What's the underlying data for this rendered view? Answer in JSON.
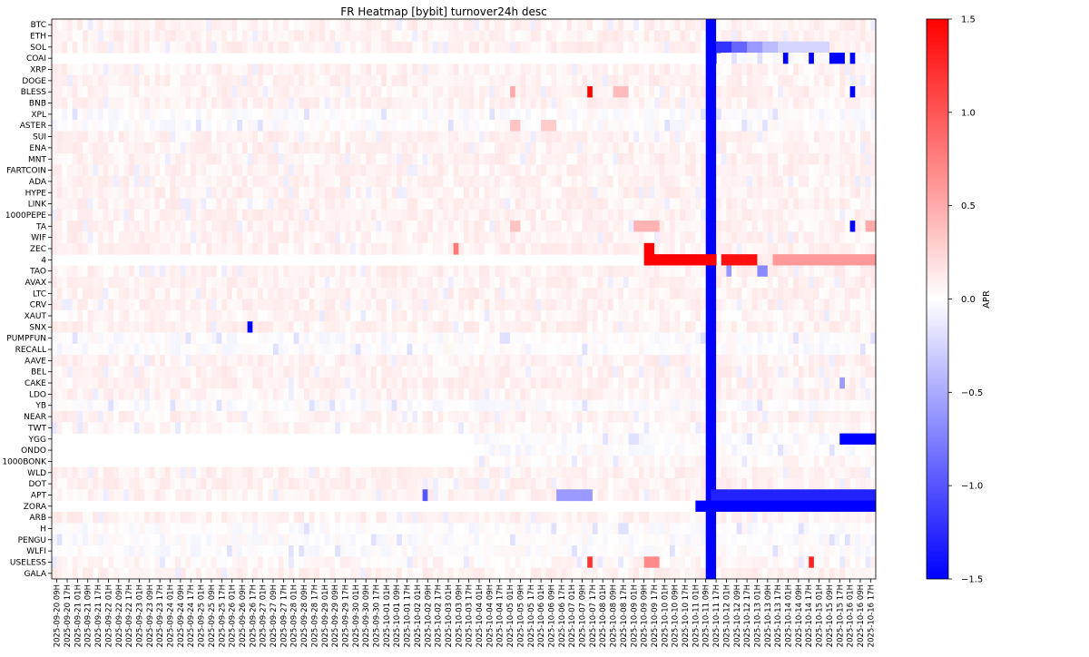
{
  "chart_data": {
    "type": "heatmap",
    "title": "FR Heatmap [bybit] turnover24h desc",
    "colorbar": {
      "label": "APR",
      "colormap": "bwr",
      "vmin": -1.5,
      "vmax": 1.5,
      "ticks": [
        "1.5",
        "1.0",
        "0.5",
        "0.0",
        "−0.5",
        "−1.0",
        "−1.5"
      ]
    },
    "rows": [
      "BTC",
      "ETH",
      "SOL",
      "COAI",
      "XRP",
      "DOGE",
      "BLESS",
      "BNB",
      "XPL",
      "ASTER",
      "SUI",
      "ENA",
      "MNT",
      "FARTCOIN",
      "ADA",
      "HYPE",
      "LINK",
      "1000PEPE",
      "TA",
      "WIF",
      "ZEC",
      "4",
      "TAO",
      "AVAX",
      "LTC",
      "CRV",
      "XAUT",
      "SNX",
      "PUMPFUN",
      "RECALL",
      "AAVE",
      "BEL",
      "CAKE",
      "LDO",
      "YB",
      "NEAR",
      "TWT",
      "YGG",
      "ONDO",
      "1000BONK",
      "WLD",
      "DOT",
      "APT",
      "ZORA",
      "ARB",
      "H",
      "PENGU",
      "WLFI",
      "USELESS",
      "GALA"
    ],
    "columns": [
      "2025-09-20 09H",
      "2025-09-20 17H",
      "2025-09-21 01H",
      "2025-09-21 09H",
      "2025-09-21 17H",
      "2025-09-22 01H",
      "2025-09-22 09H",
      "2025-09-22 17H",
      "2025-09-23 01H",
      "2025-09-23 09H",
      "2025-09-23 17H",
      "2025-09-24 01H",
      "2025-09-24 09H",
      "2025-09-24 17H",
      "2025-09-25 01H",
      "2025-09-25 09H",
      "2025-09-25 17H",
      "2025-09-26 01H",
      "2025-09-26 09H",
      "2025-09-26 17H",
      "2025-09-27 01H",
      "2025-09-27 09H",
      "2025-09-27 17H",
      "2025-09-28 01H",
      "2025-09-28 09H",
      "2025-09-28 17H",
      "2025-09-29 01H",
      "2025-09-29 09H",
      "2025-09-29 17H",
      "2025-09-30 01H",
      "2025-09-30 09H",
      "2025-09-30 17H",
      "2025-10-01 01H",
      "2025-10-01 09H",
      "2025-10-01 17H",
      "2025-10-02 01H",
      "2025-10-02 09H",
      "2025-10-02 17H",
      "2025-10-03 01H",
      "2025-10-03 09H",
      "2025-10-03 17H",
      "2025-10-04 01H",
      "2025-10-04 09H",
      "2025-10-04 17H",
      "2025-10-05 01H",
      "2025-10-05 09H",
      "2025-10-05 17H",
      "2025-10-06 01H",
      "2025-10-06 09H",
      "2025-10-06 17H",
      "2025-10-07 01H",
      "2025-10-07 09H",
      "2025-10-07 17H",
      "2025-10-08 01H",
      "2025-10-08 09H",
      "2025-10-08 17H",
      "2025-10-09 01H",
      "2025-10-09 09H",
      "2025-10-09 17H",
      "2025-10-10 01H",
      "2025-10-10 09H",
      "2025-10-10 17H",
      "2025-10-11 01H",
      "2025-10-11 09H",
      "2025-10-11 17H",
      "2025-10-12 01H",
      "2025-10-12 09H",
      "2025-10-12 17H",
      "2025-10-13 01H",
      "2025-10-13 09H",
      "2025-10-13 17H",
      "2025-10-14 01H",
      "2025-10-14 09H",
      "2025-10-14 17H",
      "2025-10-15 01H",
      "2025-10-15 09H",
      "2025-10-15 17H",
      "2025-10-16 01H",
      "2025-10-16 09H",
      "2025-10-16 17H"
    ],
    "cells_per_column": 2,
    "baseline_values": [
      0.08,
      0.08,
      0.08,
      0.0,
      0.08,
      0.08,
      0.08,
      0.08,
      0.0,
      0.0,
      0.08,
      0.08,
      0.08,
      0.08,
      0.08,
      0.08,
      0.08,
      0.08,
      0.08,
      0.08,
      0.08,
      0.08,
      0.08,
      0.08,
      0.08,
      0.08,
      0.06,
      0.08,
      0.0,
      0.0,
      0.08,
      0.08,
      0.08,
      0.08,
      0.0,
      0.08,
      0.05,
      0.0,
      0.0,
      0.05,
      0.08,
      0.08,
      0.08,
      0.08,
      0.08,
      0.0,
      0.0,
      0.0,
      0.05,
      0.08
    ],
    "row_start_cell": [
      0,
      0,
      0,
      130,
      0,
      0,
      0,
      0,
      0,
      0,
      0,
      0,
      0,
      0,
      0,
      0,
      0,
      0,
      0,
      0,
      0,
      130,
      0,
      0,
      0,
      0,
      0,
      0,
      0,
      0,
      0,
      0,
      0,
      0,
      0,
      0,
      0,
      82,
      82,
      82,
      0,
      0,
      0,
      130,
      0,
      0,
      0,
      0,
      0,
      0
    ],
    "cell_overrides": [
      {
        "row": "SOL",
        "cell_range": [
          127,
          128
        ],
        "value": -1.5
      },
      {
        "row": "SOL",
        "cell_range": [
          129,
          131
        ],
        "value": -1.2
      },
      {
        "row": "SOL",
        "cell_range": [
          132,
          134
        ],
        "value": -0.9
      },
      {
        "row": "SOL",
        "cell_range": [
          135,
          137
        ],
        "value": -0.6
      },
      {
        "row": "SOL",
        "cell_range": [
          138,
          140
        ],
        "value": -0.4
      },
      {
        "row": "SOL",
        "cell_range": [
          141,
          150
        ],
        "value": -0.25
      },
      {
        "row": "COAI",
        "cell_range": [
          142,
          142
        ],
        "value": -1.5
      },
      {
        "row": "COAI",
        "cell_range": [
          147,
          147
        ],
        "value": -1.5
      },
      {
        "row": "COAI",
        "cell_range": [
          151,
          153
        ],
        "value": -1.5
      },
      {
        "row": "COAI",
        "cell_range": [
          155,
          155
        ],
        "value": -1.5
      },
      {
        "row": "BLESS",
        "cell_range": [
          89,
          89
        ],
        "value": 0.5
      },
      {
        "row": "BLESS",
        "cell_range": [
          104,
          104
        ],
        "value": 1.5
      },
      {
        "row": "BLESS",
        "cell_range": [
          109,
          111
        ],
        "value": 0.4
      },
      {
        "row": "BLESS",
        "cell_range": [
          155,
          155
        ],
        "value": -1.5
      },
      {
        "row": "ASTER",
        "cell_range": [
          89,
          90
        ],
        "value": 0.35
      },
      {
        "row": "ASTER",
        "cell_range": [
          95,
          97
        ],
        "value": 0.3
      },
      {
        "row": "TA",
        "cell_range": [
          89,
          90
        ],
        "value": 0.35
      },
      {
        "row": "TA",
        "cell_range": [
          113,
          117
        ],
        "value": 0.45
      },
      {
        "row": "TA",
        "cell_range": [
          155,
          155
        ],
        "value": -1.5
      },
      {
        "row": "TA",
        "cell_range": [
          158,
          159
        ],
        "value": 0.5
      },
      {
        "row": "ZEC",
        "cell_range": [
          78,
          78
        ],
        "value": 0.8
      },
      {
        "row": "ZEC",
        "cell_range": [
          115,
          116
        ],
        "value": 1.5
      },
      {
        "row": "4",
        "cell_range": [
          115,
          128
        ],
        "value": 1.5
      },
      {
        "row": "4",
        "cell_range": [
          130,
          136
        ],
        "value": 1.4
      },
      {
        "row": "4",
        "cell_range": [
          146,
          146
        ],
        "value": 1.5
      },
      {
        "row": "4",
        "cell_range": [
          151,
          151
        ],
        "value": 1.5
      },
      {
        "row": "4",
        "cell_range": [
          140,
          159
        ],
        "value": 0.6
      },
      {
        "row": "TAO",
        "cell_range": [
          131,
          131
        ],
        "value": -0.6
      },
      {
        "row": "TAO",
        "cell_range": [
          137,
          138
        ],
        "value": -0.7
      },
      {
        "row": "SNX",
        "cell_range": [
          38,
          38
        ],
        "value": -1.5
      },
      {
        "row": "CAKE",
        "cell_range": [
          153,
          153
        ],
        "value": -0.6
      },
      {
        "row": "YGG",
        "cell_range": [
          153,
          159
        ],
        "value": -1.5
      },
      {
        "row": "APT",
        "cell_range": [
          72,
          72
        ],
        "value": -1.0
      },
      {
        "row": "APT",
        "cell_range": [
          98,
          104
        ],
        "value": -0.6
      },
      {
        "row": "APT",
        "cell_range": [
          128,
          159
        ],
        "value": -1.3
      },
      {
        "row": "ZORA",
        "cell_range": [
          125,
          159
        ],
        "value": -1.5
      },
      {
        "row": "USELESS",
        "cell_range": [
          104,
          104
        ],
        "value": 1.2
      },
      {
        "row": "USELESS",
        "cell_range": [
          115,
          117
        ],
        "value": 0.7
      },
      {
        "row": "USELESS",
        "cell_range": [
          147,
          147
        ],
        "value": 1.3
      }
    ],
    "column_overrides": [
      {
        "cell_range": [
          127,
          128
        ],
        "value": -1.5
      }
    ]
  }
}
